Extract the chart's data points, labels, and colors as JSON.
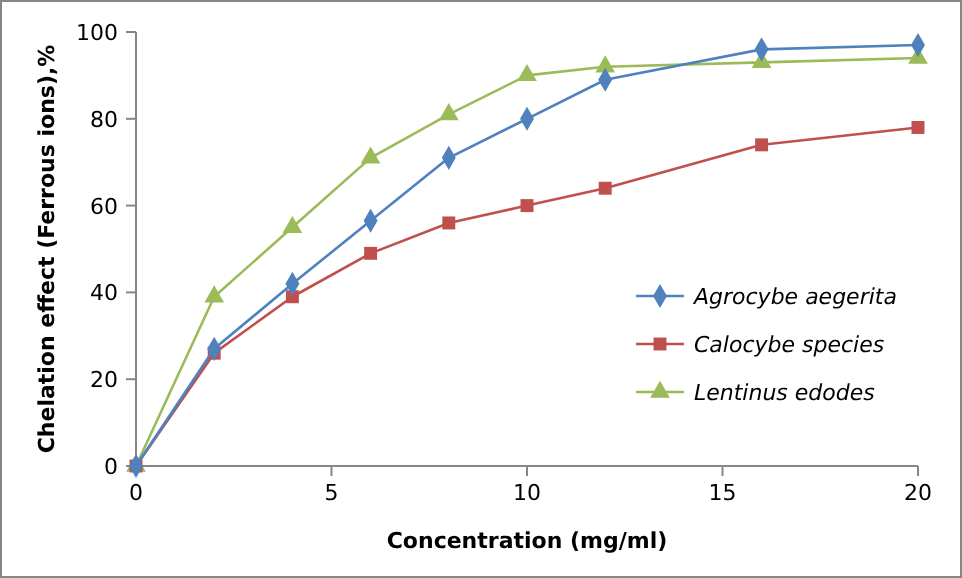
{
  "chart_data": {
    "type": "line",
    "xlabel": "Concentration (mg/ml)",
    "ylabel": "Chelation effect (Ferrous ions),%",
    "x": [
      0,
      2,
      4,
      6,
      8,
      10,
      12,
      16,
      20
    ],
    "xlim": [
      0,
      20
    ],
    "xticks": [
      0,
      5,
      10,
      15,
      20
    ],
    "ylim": [
      0,
      100
    ],
    "yticks": [
      0,
      20,
      40,
      60,
      80,
      100
    ],
    "grid": false,
    "legend": "right",
    "line_style": "solid",
    "series": [
      {
        "name": "Agrocybe aegerita",
        "color": "#4f81bd",
        "marker": "diamond",
        "values": [
          0,
          27,
          42,
          56.5,
          71,
          80,
          89,
          96,
          97
        ]
      },
      {
        "name": "Calocybe species",
        "color": "#c0504d",
        "marker": "square",
        "values": [
          0,
          26,
          39,
          49,
          56,
          60,
          64,
          74,
          78
        ]
      },
      {
        "name": "Lentinus edodes",
        "color": "#9bbb59",
        "marker": "triangle",
        "values": [
          0,
          39,
          55,
          71,
          81,
          90,
          92,
          93,
          94
        ]
      }
    ]
  }
}
